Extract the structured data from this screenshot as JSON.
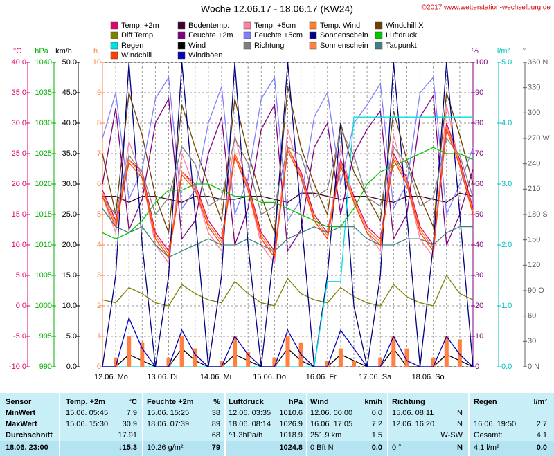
{
  "chart_data": {
    "type": "line",
    "title": "Woche 12.06.17 - 18.06.17 (KW24)",
    "copyright": "©2017 www.wetterstation-wechselburg.de",
    "categories": [
      "12.06. Mo",
      null,
      null,
      null,
      "13.06. Di",
      null,
      null,
      null,
      "14.06. Mi",
      null,
      null,
      null,
      "15.06. Do",
      null,
      null,
      null,
      "16.06. Fr",
      null,
      null,
      null,
      "17.06. Sa",
      null,
      null,
      null,
      "18.06. So",
      null,
      null,
      null,
      null
    ],
    "axes": [
      {
        "unit": "°C",
        "color": "#e0006f",
        "lim": [
          -10,
          40
        ],
        "ticks": [
          {
            "value": 40,
            "label": "40.0"
          },
          {
            "value": 35,
            "label": "35.0"
          },
          {
            "value": 30,
            "label": "30.0"
          },
          {
            "value": 25,
            "label": "25.0"
          },
          {
            "value": 20,
            "label": "20.0"
          },
          {
            "value": 15,
            "label": "15.0"
          },
          {
            "value": 10,
            "label": "10.0"
          },
          {
            "value": 5,
            "label": "5.0"
          },
          {
            "value": 0,
            "label": "0.0"
          },
          {
            "value": -5,
            "label": "-5.0"
          },
          {
            "value": -10,
            "label": "-10.0"
          }
        ]
      },
      {
        "unit": "hPa",
        "color": "#00b000",
        "lim": [
          990,
          1040
        ],
        "ticks": [
          1040,
          1035,
          1030,
          1025,
          1020,
          1015,
          1010,
          1005,
          1000,
          995,
          990
        ]
      },
      {
        "unit": "km/h",
        "color": "#000000",
        "lim": [
          0,
          50
        ],
        "ticks": [
          {
            "value": 50,
            "label": "50.0"
          },
          {
            "value": 45,
            "label": "45.0"
          },
          {
            "value": 40,
            "label": "40.0"
          },
          {
            "value": 35,
            "label": "35.0"
          },
          {
            "value": 30,
            "label": "30.0"
          },
          {
            "value": 25,
            "label": "25.0"
          },
          {
            "value": 20,
            "label": "20.0"
          },
          {
            "value": 15,
            "label": "15.0"
          },
          {
            "value": 10,
            "label": "10.0"
          },
          {
            "value": 5,
            "label": "5.0"
          },
          {
            "value": 0,
            "label": "0.0"
          }
        ]
      },
      {
        "unit": "h",
        "color": "#ff8040",
        "lim": [
          0,
          10
        ],
        "ticks": [
          10,
          9,
          8,
          7,
          6,
          5,
          4,
          3,
          2,
          1,
          0
        ]
      },
      {
        "unit": "%",
        "color": "#800080",
        "lim": [
          0,
          100
        ],
        "ticks": [
          100,
          90,
          80,
          70,
          60,
          50,
          40,
          30,
          20,
          10,
          0
        ]
      },
      {
        "unit": "l/m²",
        "color": "#00c0c0",
        "lim": [
          0,
          5
        ],
        "ticks": [
          {
            "value": 5,
            "label": "5.0"
          },
          {
            "value": 4,
            "label": "4.0"
          },
          {
            "value": 3,
            "label": "3.0"
          },
          {
            "value": 2,
            "label": "2.0"
          },
          {
            "value": 1,
            "label": "1.0"
          },
          {
            "value": 0,
            "label": "0.0"
          }
        ]
      },
      {
        "unit": "°",
        "color": "#606060",
        "lim": [
          0,
          360
        ],
        "ticks": [
          {
            "value": 360,
            "label": "360 N"
          },
          330,
          300,
          {
            "value": 270,
            "label": "270 W"
          },
          240,
          210,
          {
            "value": 180,
            "label": "180 S"
          },
          150,
          120,
          {
            "value": 90,
            "label": "90 O"
          },
          60,
          30,
          {
            "value": 0,
            "label": "0 N"
          }
        ]
      }
    ],
    "grid": true,
    "series": [
      {
        "name": "Temp. +2m",
        "color": "#e0006f",
        "axis": 0,
        "values": [
          19,
          14,
          24,
          22,
          12,
          9,
          22,
          20,
          14,
          11,
          25,
          20,
          12,
          9,
          26,
          22,
          15,
          12,
          24,
          18,
          13,
          11,
          25,
          21,
          13,
          10,
          30,
          24,
          16
        ]
      },
      {
        "name": "Bodentemp.",
        "color": "#400030",
        "axis": 0,
        "values": [
          18,
          18,
          17,
          18,
          18,
          17.5,
          17,
          18,
          18,
          17.5,
          17.5,
          18,
          18,
          17.5,
          17,
          18.5,
          18.5,
          18,
          17.5,
          18,
          18,
          17.5,
          17,
          18,
          18,
          17.5,
          17,
          18.5,
          18
        ]
      },
      {
        "name": "Temp. +5cm",
        "color": "#ff7f9f",
        "axis": 0,
        "values": [
          18,
          12,
          27,
          21,
          10,
          7,
          25,
          19,
          12,
          9,
          28,
          19,
          10,
          7,
          29,
          21,
          14,
          11,
          26,
          17,
          12,
          9,
          28,
          20,
          11,
          8,
          33,
          23,
          15
        ]
      },
      {
        "name": "Temp. Wind",
        "color": "#ff7f27",
        "axis": 0,
        "values": [
          18.5,
          13.5,
          24,
          21.5,
          11.5,
          8.5,
          22,
          19.5,
          13.5,
          10.5,
          25,
          19.5,
          11.5,
          8.5,
          26,
          21.5,
          14.5,
          11.5,
          23.5,
          17.5,
          12.5,
          10.5,
          24.5,
          20.5,
          12.5,
          9.5,
          29.5,
          23.5,
          15.5
        ]
      },
      {
        "name": "Windchill X",
        "color": "#704000",
        "axis": 0,
        "values": [
          25,
          15,
          35,
          28,
          18,
          12,
          33,
          26,
          20,
          14,
          34,
          25,
          18,
          12,
          36,
          26,
          20,
          15,
          30,
          22,
          18,
          14,
          32,
          24,
          18,
          13,
          35,
          28,
          20
        ]
      },
      {
        "name": "Diff Temp.",
        "color": "#808000",
        "axis": 0,
        "values": [
          1,
          0.5,
          3,
          2,
          0.5,
          0,
          3.5,
          2,
          1,
          0.5,
          4,
          2,
          0.5,
          0,
          4.5,
          2,
          1,
          0.5,
          3,
          1.5,
          0.5,
          0,
          3.5,
          1.5,
          0.5,
          0,
          5,
          2,
          1
        ]
      },
      {
        "name": "Feuchte +2m",
        "color": "#800080",
        "axis": 4,
        "values": [
          60,
          85,
          45,
          55,
          80,
          88,
          42,
          48,
          70,
          82,
          40,
          52,
          78,
          86,
          38,
          45,
          72,
          80,
          50,
          70,
          78,
          84,
          42,
          50,
          82,
          89,
          40,
          50,
          65
        ]
      },
      {
        "name": "Feuchte +5cm",
        "color": "#8080ff",
        "axis": 4,
        "values": [
          75,
          90,
          55,
          65,
          88,
          95,
          52,
          58,
          80,
          92,
          50,
          62,
          88,
          95,
          48,
          55,
          82,
          90,
          60,
          80,
          86,
          93,
          52,
          60,
          90,
          95,
          50,
          60,
          72
        ]
      },
      {
        "name": "Sonnenschein",
        "color": "#000080",
        "axis": 3,
        "values": [
          0,
          3,
          10,
          4,
          0,
          3,
          10,
          5,
          0,
          3,
          10,
          4,
          0,
          4,
          10,
          5,
          0,
          3,
          8,
          2,
          0,
          3,
          10,
          5,
          0,
          4,
          10,
          5,
          0
        ]
      },
      {
        "name": "Luftdruck",
        "color": "#00c800",
        "axis": 1,
        "values": [
          1012,
          1011,
          1012,
          1014,
          1017,
          1019,
          1019,
          1020,
          1020,
          1019,
          1018,
          1018,
          1017,
          1017,
          1016,
          1015,
          1014,
          1013,
          1013,
          1016,
          1020,
          1022,
          1023,
          1024,
          1025,
          1026,
          1025,
          1025,
          1024
        ]
      },
      {
        "name": "Regen",
        "color": "#00e0e0",
        "axis": 5,
        "values": [
          0,
          0,
          0,
          0,
          0,
          0,
          0,
          0,
          0,
          0,
          0,
          0,
          0,
          0,
          0,
          0,
          0,
          1.4,
          1.4,
          4.1,
          4.1,
          4.1,
          4.1,
          4.1,
          4.1,
          4.1,
          4.1,
          4.1,
          4.1
        ]
      },
      {
        "name": "Wind",
        "color": "#000000",
        "axis": 2,
        "values": [
          0,
          0,
          2,
          1,
          0,
          0,
          3,
          1,
          0,
          0,
          2,
          1,
          0,
          0,
          3,
          1,
          0,
          0,
          2,
          1,
          0,
          0,
          3,
          0,
          0,
          0,
          2,
          1,
          0
        ]
      },
      {
        "name": "Richtung",
        "color": "#808080",
        "axis": 6,
        "values": [
          200,
          180,
          250,
          230,
          180,
          200,
          260,
          240,
          190,
          200,
          270,
          240,
          180,
          190,
          260,
          250,
          200,
          210,
          280,
          250,
          200,
          190,
          260,
          240,
          190,
          200,
          270,
          250,
          200
        ]
      },
      {
        "name": "Sonnenschein",
        "color": "#ff8040",
        "axis": 3,
        "type": "bar",
        "values": [
          0,
          0.3,
          1,
          0.8,
          0,
          0.3,
          1,
          0.6,
          0,
          0.2,
          1,
          0.5,
          0,
          0.3,
          1,
          0.8,
          0,
          0.2,
          0.6,
          0.2,
          0,
          0.3,
          1,
          0.6,
          0,
          0.3,
          1,
          0.9,
          0
        ]
      },
      {
        "name": "Taupunkt",
        "color": "#408080",
        "axis": 0,
        "values": [
          16,
          13,
          12,
          13,
          10,
          8,
          9,
          10,
          11,
          10,
          10,
          11,
          10,
          9,
          11,
          12,
          13,
          12,
          13,
          13,
          11,
          10,
          10,
          11,
          11,
          10,
          12,
          13,
          13
        ]
      },
      {
        "name": "Windchill",
        "color": "#ff4000",
        "axis": 0,
        "values": [
          18,
          13,
          23.5,
          21,
          11,
          8,
          21.5,
          19,
          13,
          10,
          24.5,
          19,
          11,
          8,
          25.5,
          21,
          14,
          11,
          23,
          17,
          12,
          10,
          24,
          20,
          12,
          9,
          29,
          23,
          15
        ]
      },
      {
        "name": "Windböen",
        "color": "#0000c0",
        "axis": 2,
        "values": [
          0,
          0,
          8,
          3,
          0,
          0,
          6,
          2,
          0,
          0,
          5,
          2,
          0,
          0,
          6,
          2,
          0,
          0,
          6,
          3,
          0,
          0,
          5,
          1,
          0,
          0,
          5,
          2,
          0
        ]
      }
    ]
  },
  "table": {
    "rows": [
      [
        "Sensor",
        "Temp. +2m",
        "°C",
        "Feuchte +2m",
        "%",
        "Luftdruck",
        "hPa",
        "Wind",
        "km/h",
        "Richtung",
        null,
        "Regen",
        "l/m²"
      ],
      [
        "MinWert",
        "15.06.  05:45",
        "7.9",
        "15.06.  15:25",
        "38",
        "12.06.  03:35",
        "1010.6",
        "12.06.  00:00",
        "0.0",
        "15.06.  08:11",
        "N",
        null,
        null
      ],
      [
        "MaxWert",
        "15.06.  15:30",
        "30.9",
        "18.06.  07:39",
        "89",
        "18.06.  08:14",
        "1026.9",
        "16.06.  17:05",
        "7.2",
        "12.06.  16:20",
        "N",
        "16.06.  19:50",
        "2.7"
      ],
      [
        "Durchschnitt",
        null,
        "17.91",
        null,
        "68",
        "^1.3hPa/h",
        "1018.9",
        "251.9 km",
        "1.5",
        null,
        "W-SW",
        "Gesamt:",
        "4.1"
      ],
      [
        "18.06. 23:00",
        null,
        "↓15.3",
        "10.26 g/m²",
        "79",
        null,
        "1024.8",
        "0 Bft N",
        "0.0",
        "0 °",
        "N",
        "4.1 l/m²",
        "0.0"
      ]
    ]
  }
}
